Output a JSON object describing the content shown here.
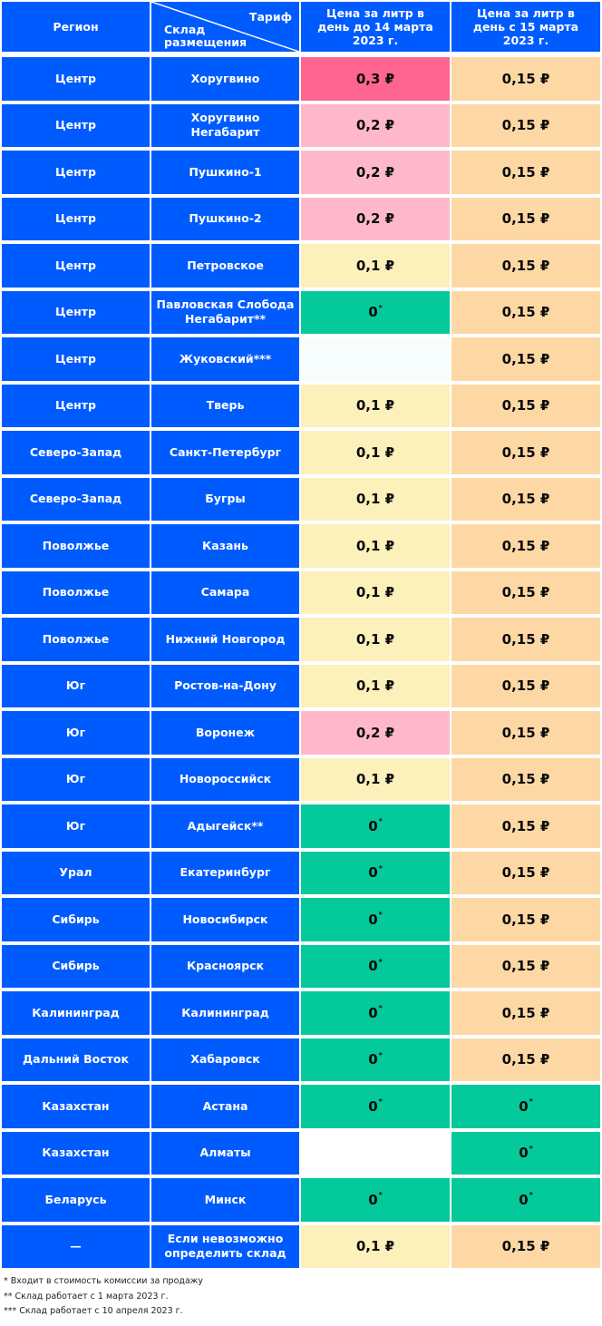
{
  "header": {
    "region": "Регион",
    "tariff": "Тариф",
    "warehouse": "Склад размещения",
    "price_before": "Цена за литр в день до 14 марта 2023 г.",
    "price_after": "Цена за литр в день с 15 марта 2023 г."
  },
  "colors": {
    "blue": "#005bff",
    "hot": "#ff6591",
    "pink": "#ffb8cb",
    "yellow": "#fcf0bb",
    "peach": "#fdd8a5",
    "green": "#04c99a"
  },
  "rows": [
    {
      "region": "Центр",
      "warehouse": "Хоругвино",
      "before": "0,3 ₽",
      "before_color": "hot",
      "after": "0,15 ₽",
      "after_color": "peach"
    },
    {
      "region": "Центр",
      "warehouse": "Хоругвино Негабарит",
      "before": "0,2 ₽",
      "before_color": "pink",
      "after": "0,15 ₽",
      "after_color": "peach"
    },
    {
      "region": "Центр",
      "warehouse": "Пушкино-1",
      "before": "0,2 ₽",
      "before_color": "pink",
      "after": "0,15 ₽",
      "after_color": "peach"
    },
    {
      "region": "Центр",
      "warehouse": "Пушкино-2",
      "before": "0,2 ₽",
      "before_color": "pink",
      "after": "0,15 ₽",
      "after_color": "peach"
    },
    {
      "region": "Центр",
      "warehouse": "Петровское",
      "before": "0,1 ₽",
      "before_color": "yellow",
      "after": "0,15 ₽",
      "after_color": "peach"
    },
    {
      "region": "Центр",
      "warehouse": "Павловская Слобода Негабарит**",
      "before": "0",
      "before_sup": "*",
      "before_color": "green",
      "after": "0,15 ₽",
      "after_color": "peach"
    },
    {
      "region": "Центр",
      "warehouse": "Жуковский***",
      "before": "",
      "before_color": "white",
      "after": "0,15 ₽",
      "after_color": "peach"
    },
    {
      "region": "Центр",
      "warehouse": "Тверь",
      "before": "0,1 ₽",
      "before_color": "yellow",
      "after": "0,15 ₽",
      "after_color": "peach"
    },
    {
      "region": "Северо-Запад",
      "warehouse": "Санкт-Петербург",
      "before": "0,1 ₽",
      "before_color": "yellow",
      "after": "0,15 ₽",
      "after_color": "peach"
    },
    {
      "region": "Северо-Запад",
      "warehouse": "Бугры",
      "before": "0,1 ₽",
      "before_color": "yellow",
      "after": "0,15 ₽",
      "after_color": "peach"
    },
    {
      "region": "Поволжье",
      "warehouse": "Казань",
      "before": "0,1 ₽",
      "before_color": "yellow",
      "after": "0,15 ₽",
      "after_color": "peach"
    },
    {
      "region": "Поволжье",
      "warehouse": "Самара",
      "before": "0,1 ₽",
      "before_color": "yellow",
      "after": "0,15 ₽",
      "after_color": "peach"
    },
    {
      "region": "Поволжье",
      "warehouse": "Нижний Новгород",
      "before": "0,1 ₽",
      "before_color": "yellow",
      "after": "0,15 ₽",
      "after_color": "peach"
    },
    {
      "region": "Юг",
      "warehouse": "Ростов-на-Дону",
      "before": "0,1 ₽",
      "before_color": "yellow",
      "after": "0,15 ₽",
      "after_color": "peach"
    },
    {
      "region": "Юг",
      "warehouse": "Воронеж",
      "before": "0,2 ₽",
      "before_color": "pink",
      "after": "0,15 ₽",
      "after_color": "peach"
    },
    {
      "region": "Юг",
      "warehouse": "Новороссийск",
      "before": "0,1 ₽",
      "before_color": "yellow",
      "after": "0,15 ₽",
      "after_color": "peach"
    },
    {
      "region": "Юг",
      "warehouse": "Адыгейск**",
      "before": "0",
      "before_sup": "*",
      "before_color": "green",
      "after": "0,15 ₽",
      "after_color": "peach"
    },
    {
      "region": "Урал",
      "warehouse": "Екатеринбург",
      "before": "0",
      "before_sup": "*",
      "before_color": "green",
      "after": "0,15 ₽",
      "after_color": "peach"
    },
    {
      "region": "Сибирь",
      "warehouse": "Новосибирск",
      "before": "0",
      "before_sup": "*",
      "before_color": "green",
      "after": "0,15 ₽",
      "after_color": "peach"
    },
    {
      "region": "Сибирь",
      "warehouse": "Красноярск",
      "before": "0",
      "before_sup": "*",
      "before_color": "green",
      "after": "0,15 ₽",
      "after_color": "peach"
    },
    {
      "region": "Калининград",
      "warehouse": "Калининград",
      "before": "0",
      "before_sup": "*",
      "before_color": "green",
      "after": "0,15 ₽",
      "after_color": "peach"
    },
    {
      "region": "Дальний Восток",
      "warehouse": "Хабаровск",
      "before": "0",
      "before_sup": "*",
      "before_color": "green",
      "after": "0,15 ₽",
      "after_color": "peach"
    },
    {
      "region": "Казахстан",
      "warehouse": "Астана",
      "before": "0",
      "before_sup": "*",
      "before_color": "green",
      "after": "0",
      "after_sup": "*",
      "after_color": "green"
    },
    {
      "region": "Казахстан",
      "warehouse": "Алматы",
      "before": "",
      "before_color": "none",
      "after": "0",
      "after_sup": "*",
      "after_color": "green"
    },
    {
      "region": "Беларусь",
      "warehouse": "Минск",
      "before": "0",
      "before_sup": "*",
      "before_color": "green",
      "after": "0",
      "after_sup": "*",
      "after_color": "green"
    },
    {
      "region": "—",
      "warehouse": "Если невозможно определить склад",
      "before": "0,1 ₽",
      "before_color": "yellow",
      "after": "0,15 ₽",
      "after_color": "peach"
    }
  ],
  "footnotes": [
    "* Входит в стоимость комиссии за продажу",
    "** Склад работает с 1 марта 2023 г.",
    "*** Склад работает с 10 апреля 2023 г."
  ]
}
